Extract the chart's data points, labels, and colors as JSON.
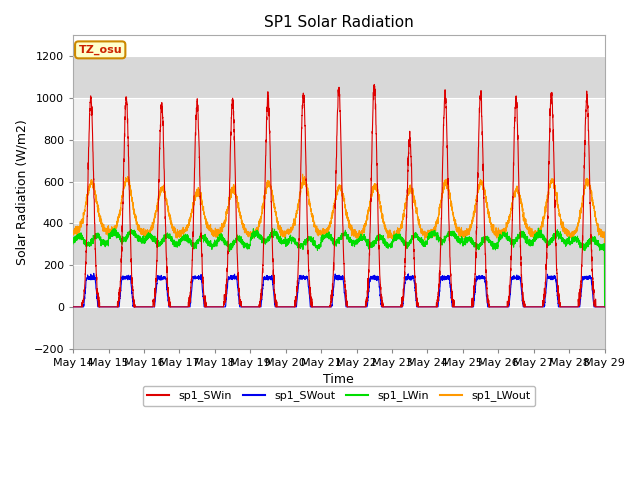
{
  "title": "SP1 Solar Radiation",
  "xlabel": "Time",
  "ylabel": "Solar Radiation (W/m2)",
  "ylim": [
    -200,
    1300
  ],
  "yticks": [
    -200,
    0,
    200,
    400,
    600,
    800,
    1000,
    1200
  ],
  "xticklabels": [
    "May 14",
    "May 15",
    "May 16",
    "May 17",
    "May 18",
    "May 19",
    "May 20",
    "May 21",
    "May 22",
    "May 23",
    "May 24",
    "May 25",
    "May 26",
    "May 27",
    "May 28",
    "May 29"
  ],
  "annotation_text": "TZ_osu",
  "annotation_color": "#cc2200",
  "annotation_bg": "#ffffcc",
  "annotation_border": "#cc8800",
  "colors": {
    "sp1_SWin": "#dd0000",
    "sp1_SWout": "#0000ee",
    "sp1_LWin": "#00dd00",
    "sp1_LWout": "#ff9900"
  },
  "fig_bg": "#ffffff",
  "plot_bg_light": "#f0f0f0",
  "plot_bg_dark": "#d8d8d8",
  "num_days": 15,
  "points_per_day": 288
}
